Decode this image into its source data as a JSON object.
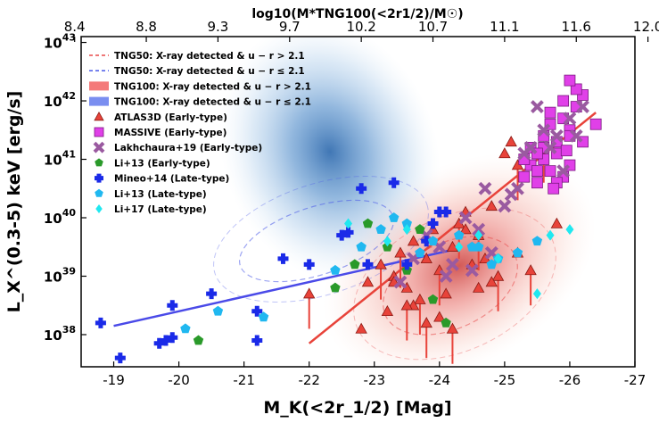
{
  "chart_data": {
    "type": "scatter",
    "title": "",
    "xlabel": "M_K(<2r_1/2) [Mag]",
    "ylabel": "L_X^(0.3-5) keV [erg/s]",
    "top_xlabel": "log10(M*TNG100(<2r1/2)/M☉)",
    "xlim": [
      -18.5,
      -27
    ],
    "ylim_log10": [
      37.45,
      43.1
    ],
    "x_ticks": [
      -19,
      -20,
      -21,
      -22,
      -23,
      -24,
      -25,
      -26,
      -27
    ],
    "x_tick_labels": [
      "-19",
      "-20",
      "-21",
      "-22",
      "-23",
      "-24",
      "-25",
      "-26",
      "-27"
    ],
    "y_ticks_log10": [
      38,
      39,
      40,
      41,
      42,
      43
    ],
    "y_tick_labels": [
      "38",
      "39",
      "40",
      "41",
      "42",
      "43"
    ],
    "top_ticks_mag": [
      -18.4,
      -19.5,
      -20.6,
      -21.7,
      -22.8,
      -23.9,
      -25.0,
      -26.1,
      -27.2
    ],
    "top_tick_labels": [
      "8.4",
      "8.8",
      "9.3",
      "9.7",
      "10.2",
      "10.7",
      "11.1",
      "11.6",
      "12.0"
    ],
    "legend": {
      "position": "top-left",
      "entries": [
        {
          "label": "TNG50: X-ray detected & u − r > 2.1",
          "kind": "dashed",
          "color": "#e84a4a"
        },
        {
          "label": "TNG50: X-ray detected & u − r ≤ 2.1",
          "kind": "dashed",
          "color": "#4a5ae8"
        },
        {
          "label": "TNG100: X-ray detected & u − r > 2.1",
          "kind": "patch",
          "color": "#f47a7a"
        },
        {
          "label": "TNG100: X-ray detected & u − r ≤ 2.1",
          "kind": "patch",
          "color": "#7a8ef0"
        },
        {
          "label": "ATLAS3D (Early-type)",
          "kind": "triangle",
          "color": "#e8433a"
        },
        {
          "label": "MASSIVE (Early-type)",
          "kind": "square",
          "color": "#e040e8"
        },
        {
          "label": "Lakhchaura+19 (Early-type)",
          "kind": "x",
          "color": "#9a5aa0"
        },
        {
          "label": "Li+13 (Early-type)",
          "kind": "pentagon",
          "color": "#2a9a2a"
        },
        {
          "label": "Mineo+14 (Late-type)",
          "kind": "plus",
          "color": "#1a2ae8"
        },
        {
          "label": "Li+13 (Late-type)",
          "kind": "pentagon",
          "color": "#20b8f0"
        },
        {
          "label": "Li+17 (Late-type)",
          "kind": "diamond",
          "color": "#20e8f0"
        }
      ]
    },
    "series": [
      {
        "name": "ATLAS3D (Early-type)",
        "marker": "triangle",
        "color": "#e8433a",
        "x": [
          -22,
          -22.8,
          -22.9,
          -23.1,
          -23.2,
          -23.3,
          -23.4,
          -23.5,
          -23.6,
          -23.7,
          -23.8,
          -23.9,
          -24,
          -24.1,
          -24.2,
          -24.3,
          -24.4,
          -24.5,
          -24.6,
          -24.7,
          -24.8,
          -24.9,
          -25,
          -25.1,
          -25.2,
          -25.3,
          -25.5,
          -25.6,
          -25.8,
          -24,
          -24.2,
          -24.4,
          -23.6,
          -23.8,
          -24.6,
          -25.2,
          -25.4,
          -24.8,
          -23.3,
          -23.5
        ],
        "y": [
          38.7,
          38.1,
          38.9,
          39.2,
          38.4,
          39,
          39.4,
          38.8,
          39.6,
          38.6,
          39.3,
          39.8,
          39.1,
          38.7,
          39.5,
          39.9,
          40.1,
          39.2,
          39.7,
          39.3,
          40.2,
          39,
          41.1,
          41.3,
          40.9,
          40.7,
          40.8,
          41.2,
          39.9,
          38.3,
          38.1,
          39.8,
          38.5,
          38.2,
          38.8,
          39.4,
          39.1,
          38.9,
          38.9,
          38.5
        ]
      },
      {
        "name": "MASSIVE (Early-type)",
        "marker": "square",
        "color": "#e040e8",
        "x": [
          -25.3,
          -25.4,
          -25.5,
          -25.6,
          -25.7,
          -25.8,
          -25.9,
          -26,
          -25.6,
          -25.7,
          -25.8,
          -25.9,
          -26,
          -26.1,
          -26.2,
          -26.4,
          -25.4,
          -25.5,
          -25.7,
          -25.9,
          -26.1,
          -25.6,
          -25.8,
          -26.0,
          -26.2,
          -25.3,
          -25.5,
          -25.75,
          -25.95,
          -26.0
        ],
        "y": [
          40.7,
          40.9,
          40.6,
          41,
          40.8,
          41.1,
          40.7,
          40.9,
          41.4,
          41.6,
          41.3,
          41.7,
          41.5,
          41.9,
          42.1,
          41.6,
          41.2,
          40.8,
          41.8,
          42,
          42.2,
          41.2,
          40.6,
          41.4,
          41.3,
          41.0,
          41.1,
          40.5,
          41.15,
          42.35
        ]
      },
      {
        "name": "Lakhchaura+19 (Early-type)",
        "marker": "x",
        "color": "#9a5aa0",
        "x": [
          -23.4,
          -23.6,
          -23.8,
          -24,
          -24.2,
          -24.4,
          -24.6,
          -24.8,
          -25,
          -25.2,
          -25.4,
          -25.6,
          -25.8,
          -26,
          -26.2,
          -25.7,
          -25.9,
          -26.1,
          -25.5,
          -24.7,
          -24.5,
          -24.1,
          -25.3,
          -25.1
        ],
        "y": [
          38.9,
          39.3,
          39.7,
          39.5,
          39.2,
          40,
          39.8,
          39.4,
          40.2,
          40.5,
          41.2,
          41.5,
          41.4,
          41.7,
          41.9,
          41.2,
          40.8,
          41.4,
          41.9,
          40.5,
          39.1,
          39,
          41.1,
          40.4
        ]
      },
      {
        "name": "Li+13 (Early-type)",
        "marker": "pentagon",
        "color": "#2a9a2a",
        "x": [
          -20.3,
          -22.4,
          -22.7,
          -22.9,
          -23.2,
          -23.5,
          -23.7,
          -23.9,
          -24.1
        ],
        "y": [
          37.9,
          38.8,
          39.2,
          39.9,
          39.5,
          39.1,
          39.8,
          38.6,
          38.2
        ]
      },
      {
        "name": "Mineo+14 (Late-type)",
        "marker": "plus",
        "color": "#1a2ae8",
        "x": [
          -18.8,
          -19.1,
          -19.7,
          -19.8,
          -19.9,
          -19.9,
          -20.5,
          -21.2,
          -21.2,
          -21.6,
          -22,
          -22.5,
          -22.6,
          -22.8,
          -22.9,
          -23.3,
          -23.5,
          -24,
          -24.1,
          -23.8,
          -23.9
        ],
        "y": [
          38.2,
          37.6,
          37.85,
          37.9,
          38.5,
          37.95,
          38.7,
          38.4,
          37.9,
          39.3,
          39.2,
          39.7,
          39.75,
          40.5,
          39.2,
          40.6,
          39.2,
          40.1,
          40.1,
          39.6,
          39.9
        ]
      },
      {
        "name": "Li+13 (Late-type)",
        "marker": "pentagon",
        "color": "#20b8f0",
        "x": [
          -20.1,
          -20.6,
          -21.3,
          -22.4,
          -22.8,
          -23.1,
          -23.3,
          -23.5,
          -23.7,
          -23.9,
          -24.3,
          -24.6,
          -24.9,
          -25.2,
          -24.8,
          -24.5,
          -25.5
        ],
        "y": [
          38.1,
          38.4,
          38.3,
          39.1,
          39.5,
          39.8,
          40,
          39.9,
          39.4,
          39.6,
          39.7,
          39.5,
          39.3,
          39.4,
          39.2,
          39.5,
          39.6
        ]
      },
      {
        "name": "Li+17 (Late-type)",
        "marker": "diamond",
        "color": "#20e8f0",
        "x": [
          -22.6,
          -23.2,
          -23.5,
          -24.3,
          -24.6,
          -24.9,
          -25.5,
          -25.7,
          -26
        ],
        "y": [
          39.9,
          39.6,
          39.8,
          39.5,
          39.7,
          39.3,
          38.7,
          39.7,
          39.8
        ]
      }
    ],
    "fit_lines": [
      {
        "name": "late-type fit",
        "color": "#4a4ae8",
        "x": [
          -19,
          -24.2
        ],
        "y": [
          38.15,
          39.45
        ]
      },
      {
        "name": "early-type fit",
        "color": "#e8433a",
        "x": [
          -22,
          -26.4
        ],
        "y": [
          37.85,
          41.8
        ]
      }
    ]
  }
}
